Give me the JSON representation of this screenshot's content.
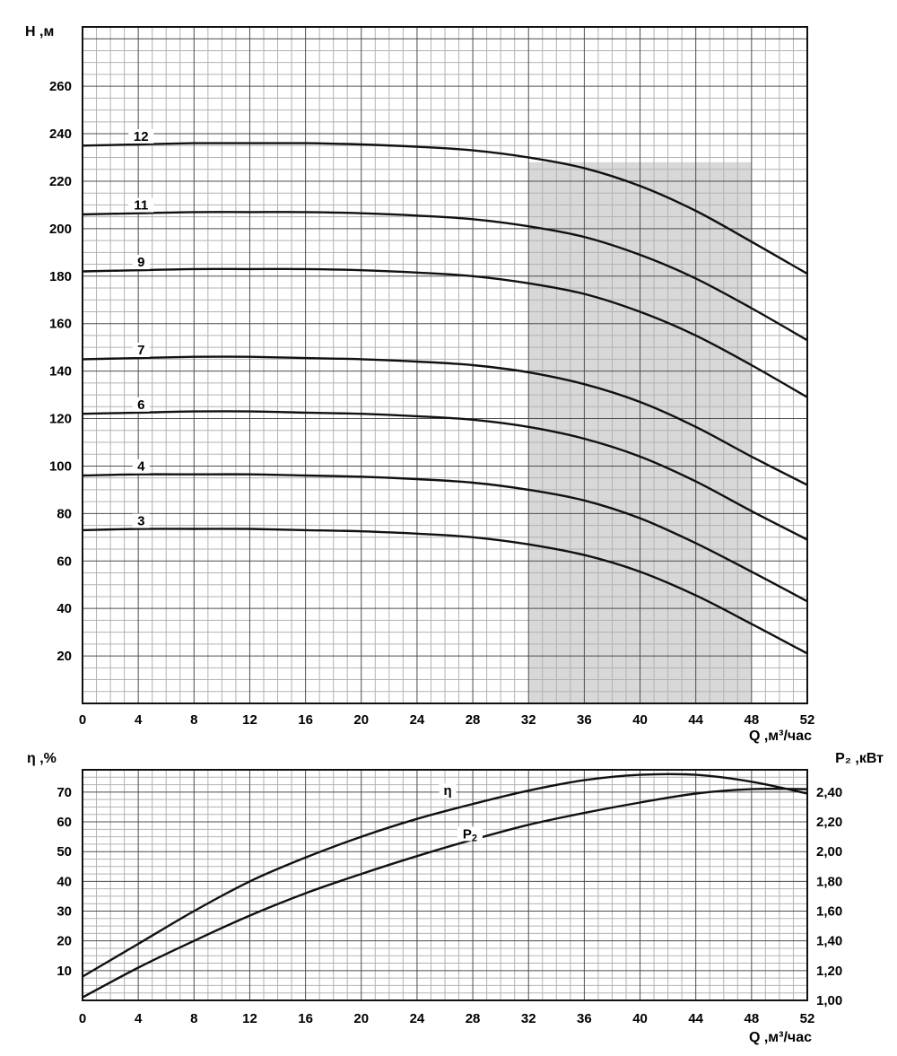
{
  "page": {
    "background": "#ffffff"
  },
  "colors": {
    "curve": "#111111",
    "grid_minor": "#b2b2b2",
    "grid_major": "#4d4d4d",
    "axis_border": "#111111",
    "shade": "#d8d8d8",
    "text": "#000000",
    "label_bg": "#ffffff"
  },
  "chart_data": [
    {
      "id": "head_flow_chart",
      "type": "line",
      "ylabel": "H ,м",
      "xlabel": "Q ,м³/час",
      "xlim": [
        0,
        52
      ],
      "ylim": [
        0,
        285
      ],
      "x_ticks": [
        0,
        4,
        8,
        12,
        16,
        20,
        24,
        28,
        32,
        36,
        40,
        44,
        48,
        52
      ],
      "y_ticks": [
        20,
        40,
        60,
        80,
        100,
        120,
        140,
        160,
        180,
        200,
        220,
        240,
        260
      ],
      "x_minor_step": 1,
      "y_minor_step": 5,
      "grid": true,
      "recommended_range": {
        "x0": 32,
        "x1": 48,
        "y0": 0,
        "y1": 228
      },
      "x": [
        0,
        4,
        8,
        12,
        16,
        20,
        24,
        28,
        32,
        36,
        40,
        44,
        48,
        52
      ],
      "series": [
        {
          "name": "12",
          "label_x": 4.2,
          "values": [
            235,
            235.5,
            236,
            236,
            236,
            235.5,
            234.5,
            233,
            230,
            225.5,
            218,
            207.5,
            194.5,
            181
          ]
        },
        {
          "name": "11",
          "label_x": 4.2,
          "values": [
            206,
            206.5,
            207,
            207,
            207,
            206.5,
            205.5,
            204,
            201,
            196.5,
            189,
            179,
            166.5,
            153
          ]
        },
        {
          "name": "9",
          "label_x": 4.2,
          "values": [
            182,
            182.5,
            183,
            183,
            183,
            182.5,
            181.5,
            180,
            177,
            172.5,
            165,
            155,
            142.5,
            129
          ]
        },
        {
          "name": "7",
          "label_x": 4.2,
          "values": [
            145,
            145.5,
            146,
            146,
            145.5,
            145,
            144,
            142.5,
            139.5,
            134.5,
            127,
            116.5,
            104,
            92
          ]
        },
        {
          "name": "6",
          "label_x": 4.2,
          "values": [
            122,
            122.5,
            123,
            123,
            122.5,
            122,
            121,
            119.5,
            116.5,
            111.5,
            104,
            93.5,
            81,
            69
          ]
        },
        {
          "name": "4",
          "label_x": 4.2,
          "values": [
            96,
            96.5,
            96.5,
            96.5,
            96,
            95.5,
            94.5,
            93,
            90,
            85.5,
            78,
            67.5,
            55.5,
            43
          ]
        },
        {
          "name": "3",
          "label_x": 4.2,
          "values": [
            73,
            73.5,
            73.5,
            73.5,
            73,
            72.5,
            71.5,
            70,
            67,
            62.5,
            55.5,
            45.5,
            33.5,
            21
          ]
        }
      ]
    },
    {
      "id": "efficiency_power_chart",
      "type": "line",
      "xlabel": "Q ,м³/час",
      "xlim": [
        0,
        52
      ],
      "x_ticks": [
        0,
        4,
        8,
        12,
        16,
        20,
        24,
        28,
        32,
        36,
        40,
        44,
        48,
        52
      ],
      "x_minor_step": 1,
      "grid": true,
      "left_axis": {
        "label": "η ,%",
        "ticks": [
          10,
          20,
          30,
          40,
          50,
          60,
          70
        ],
        "lim": [
          0,
          77.5
        ],
        "minor_step": 2.5
      },
      "right_axis": {
        "label": "P₂ ,кВт",
        "tick_labels": [
          "1,00",
          "1,20",
          "1,40",
          "1,60",
          "1,80",
          "2,00",
          "2,20",
          "2,40"
        ],
        "tick_values": [
          1.0,
          1.2,
          1.4,
          1.6,
          1.8,
          2.0,
          2.2,
          2.4
        ],
        "align": {
          "p2": [
            1.0,
            2.4
          ],
          "eta": [
            0,
            70
          ]
        }
      },
      "x": [
        0,
        4,
        8,
        12,
        16,
        20,
        24,
        28,
        32,
        36,
        40,
        44,
        48,
        52
      ],
      "series": [
        {
          "name": "η",
          "axis": "left",
          "label": {
            "x": 26.2,
            "y_eta": 70.5
          },
          "values": [
            8,
            19,
            30,
            40,
            48,
            55,
            61,
            66,
            70.5,
            74,
            75.8,
            75.8,
            73.5,
            69.5
          ]
        },
        {
          "name": "P₂",
          "axis": "right",
          "label": {
            "x": 27.8,
            "y_eta": 56
          },
          "values": [
            1.02,
            1.22,
            1.4,
            1.57,
            1.72,
            1.85,
            1.97,
            2.08,
            2.18,
            2.26,
            2.33,
            2.39,
            2.42,
            2.42
          ]
        }
      ]
    }
  ]
}
